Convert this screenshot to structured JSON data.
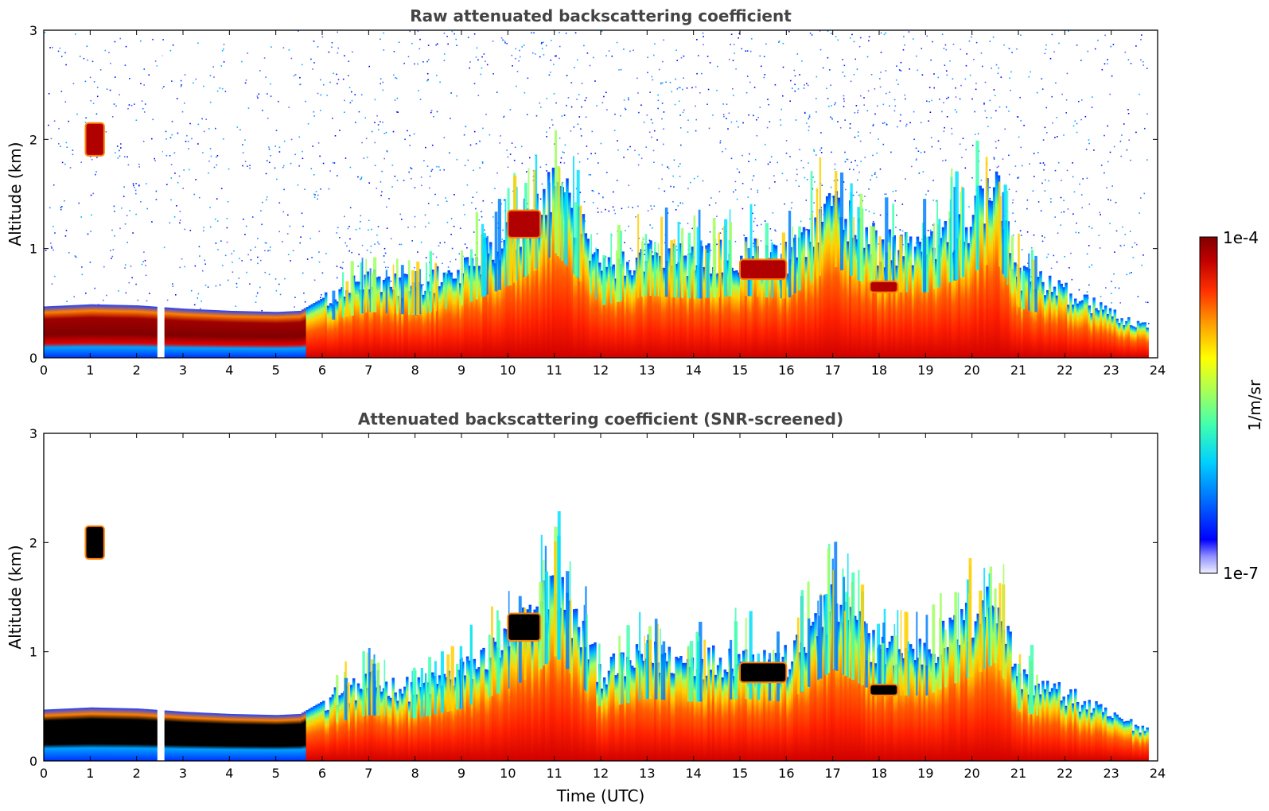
{
  "chart_data": [
    {
      "type": "heatmap",
      "title": "Raw attenuated backscattering coefficient",
      "xlabel": "",
      "ylabel": "Altitude (km)",
      "xlim": [
        0,
        24
      ],
      "ylim": [
        0,
        3
      ],
      "x_ticks": [
        "0",
        "1",
        "2",
        "3",
        "4",
        "5",
        "6",
        "7",
        "8",
        "9",
        "10",
        "11",
        "12",
        "13",
        "14",
        "15",
        "16",
        "17",
        "18",
        "19",
        "20",
        "21",
        "22",
        "23",
        "24"
      ],
      "y_ticks": [
        "0",
        "1",
        "2",
        "3"
      ],
      "grid": false,
      "screened": false,
      "data_gap_time": 2.5,
      "boundary_layer_top_km": [
        [
          0,
          0.47
        ],
        [
          1,
          0.49
        ],
        [
          2,
          0.48
        ],
        [
          3,
          0.45
        ],
        [
          4,
          0.43
        ],
        [
          5,
          0.42
        ],
        [
          5.5,
          0.43
        ],
        [
          6,
          0.55
        ],
        [
          7,
          0.7
        ],
        [
          8,
          0.65
        ],
        [
          9,
          0.8
        ],
        [
          10,
          1.1
        ],
        [
          10.5,
          1.3
        ],
        [
          11,
          1.6
        ],
        [
          12,
          0.8
        ],
        [
          13,
          0.95
        ],
        [
          14,
          0.9
        ],
        [
          15,
          0.95
        ],
        [
          16,
          0.9
        ],
        [
          17,
          1.4
        ],
        [
          18,
          1.0
        ],
        [
          19,
          1.0
        ],
        [
          20,
          1.3
        ],
        [
          20.5,
          1.5
        ],
        [
          21,
          0.75
        ],
        [
          22,
          0.6
        ],
        [
          23,
          0.4
        ],
        [
          23.8,
          0.28
        ]
      ],
      "elevated_layers": [
        {
          "t_start": 0.9,
          "t_end": 1.3,
          "alt_bottom_km": 1.85,
          "alt_top_km": 2.15
        },
        {
          "t_start": 10.0,
          "t_end": 10.7,
          "alt_bottom_km": 1.1,
          "alt_top_km": 1.35
        },
        {
          "t_start": 15.0,
          "t_end": 16.0,
          "alt_bottom_km": 0.72,
          "alt_top_km": 0.9
        },
        {
          "t_start": 17.8,
          "t_end": 18.4,
          "alt_bottom_km": 0.6,
          "alt_top_km": 0.7
        }
      ]
    },
    {
      "type": "heatmap",
      "title": "Attenuated backscattering coefficient (SNR-screened)",
      "xlabel": "Time (UTC)",
      "ylabel": "Altitude (km)",
      "xlim": [
        0,
        24
      ],
      "ylim": [
        0,
        3
      ],
      "x_ticks": [
        "0",
        "1",
        "2",
        "3",
        "4",
        "5",
        "6",
        "7",
        "8",
        "9",
        "10",
        "11",
        "12",
        "13",
        "14",
        "15",
        "16",
        "17",
        "18",
        "19",
        "20",
        "21",
        "22",
        "23",
        "24"
      ],
      "y_ticks": [
        "0",
        "1",
        "2",
        "3"
      ],
      "grid": false,
      "screened": true,
      "data_gap_time": 2.5
    }
  ],
  "colorbar": {
    "label": "1/m/sr",
    "max_label": "1e-4",
    "min_label": "1e-7",
    "scale": "log",
    "range": [
      1e-07,
      0.0001
    ],
    "colormap": [
      "#e8e8ff",
      "#8080ff",
      "#0000ff",
      "#0080ff",
      "#00c8ff",
      "#40ffc0",
      "#a0ff60",
      "#ffff00",
      "#ffa000",
      "#ff3000",
      "#c00000",
      "#800000"
    ]
  }
}
